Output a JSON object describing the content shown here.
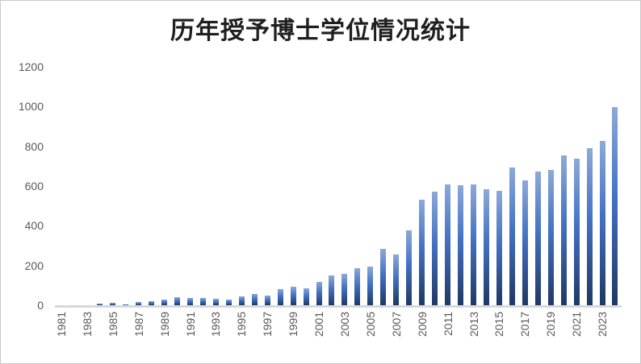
{
  "chart_data": {
    "type": "bar",
    "title": "历年授予博士学位情况统计",
    "categories": [
      "1981",
      "1982",
      "1983",
      "1984",
      "1985",
      "1986",
      "1987",
      "1988",
      "1989",
      "1990",
      "1991",
      "1992",
      "1993",
      "1994",
      "1995",
      "1996",
      "1997",
      "1998",
      "1999",
      "2000",
      "2001",
      "2002",
      "2003",
      "2004",
      "2005",
      "2006",
      "2007",
      "2008",
      "2009",
      "2010",
      "2011",
      "2012",
      "2013",
      "2014",
      "2015",
      "2016",
      "2017",
      "2018",
      "2019",
      "2020",
      "2021",
      "2022",
      "2023",
      "2024"
    ],
    "values": [
      0,
      0,
      0,
      8,
      12,
      6,
      16,
      20,
      28,
      40,
      37,
      36,
      32,
      28,
      45,
      57,
      50,
      81,
      93,
      85,
      118,
      150,
      158,
      186,
      196,
      284,
      255,
      377,
      532,
      572,
      608,
      604,
      608,
      584,
      576,
      693,
      628,
      673,
      681,
      754,
      738,
      790,
      827,
      997
    ],
    "x_tick_labels": [
      "1981",
      "1983",
      "1985",
      "1987",
      "1989",
      "1991",
      "1993",
      "1995",
      "1997",
      "1999",
      "2001",
      "2003",
      "2005",
      "2007",
      "2009",
      "2011",
      "2013",
      "2015",
      "2017",
      "2019",
      "2021",
      "2023"
    ],
    "y_ticks": [
      "0",
      "200",
      "400",
      "600",
      "800",
      "1000",
      "1200"
    ],
    "ylim": [
      0,
      1200
    ],
    "grid": false,
    "legend": null,
    "colors": {
      "bar_gradient_top": "#8da9d8",
      "bar_gradient_mid": "#4472c4",
      "bar_gradient_bottom": "#1f3864",
      "axis_line": "#d9d9d9",
      "tick_label": "#595959",
      "title": "#1f1f1f",
      "border": "#c9c9c9"
    }
  }
}
